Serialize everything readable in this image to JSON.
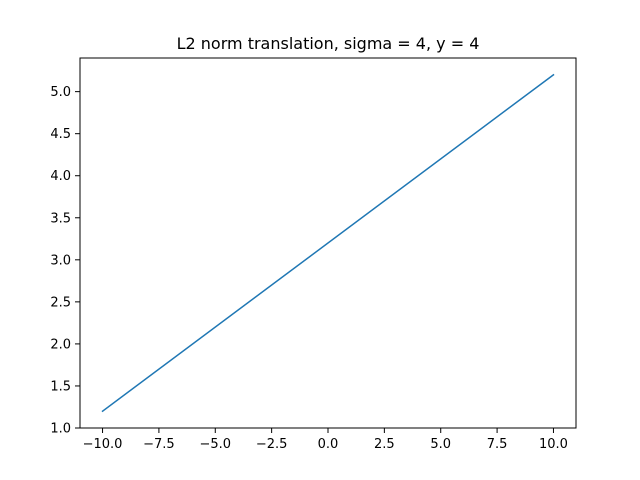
{
  "chart_data": {
    "type": "line",
    "title": "L2 norm translation, sigma = 4, y = 4",
    "xlabel": "",
    "ylabel": "",
    "xlim": [
      -11,
      11
    ],
    "ylim": [
      1.0,
      5.4
    ],
    "x_ticks": [
      -10.0,
      -7.5,
      -5.0,
      -2.5,
      0.0,
      2.5,
      5.0,
      7.5,
      10.0
    ],
    "x_tick_labels": [
      "−10.0",
      "−7.5",
      "−5.0",
      "−2.5",
      "0.0",
      "2.5",
      "5.0",
      "7.5",
      "10.0"
    ],
    "y_ticks": [
      1.0,
      1.5,
      2.0,
      2.5,
      3.0,
      3.5,
      4.0,
      4.5,
      5.0
    ],
    "y_tick_labels": [
      "1.0",
      "1.5",
      "2.0",
      "2.5",
      "3.0",
      "3.5",
      "4.0",
      "4.5",
      "5.0"
    ],
    "grid": false,
    "legend": "none",
    "series": [
      {
        "color": "#1f77b4",
        "x": [
          -10,
          10
        ],
        "y": [
          1.2,
          5.2
        ]
      }
    ]
  }
}
